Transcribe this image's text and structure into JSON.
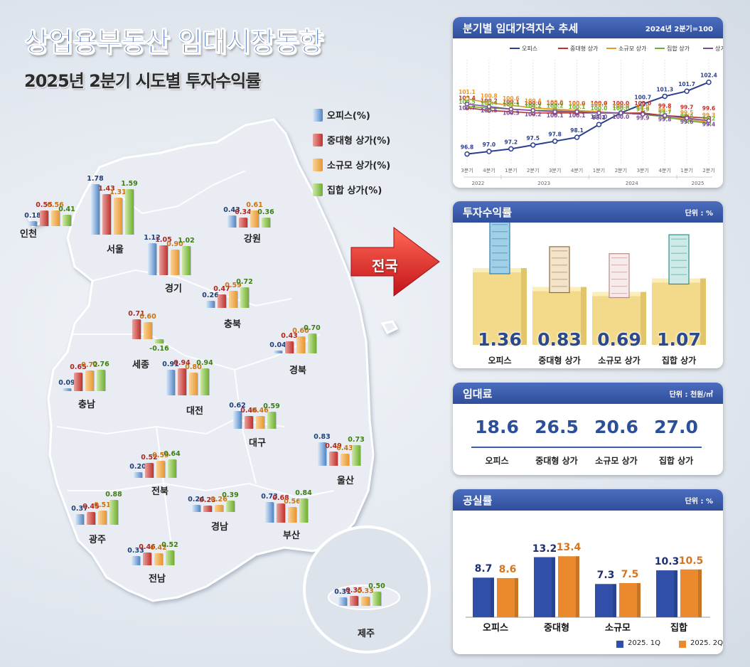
{
  "title": "상업용부동산 임대시장동향",
  "subtitle": "2025년 2분기 시도별 투자수익률",
  "legend": [
    {
      "label": "오피스(%)",
      "color": "#4f86c9"
    },
    {
      "label": "중대형 상가(%)",
      "color": "#c0302b"
    },
    {
      "label": "소규모 상가(%)",
      "color": "#e8962c"
    },
    {
      "label": "집합 상가(%)",
      "color": "#6fae2e"
    }
  ],
  "national_label": "전국",
  "chart_data": [
    {
      "type": "bar",
      "title": "2025년 2분기 시도별 투자수익률",
      "series": [
        {
          "name": "오피스(%)"
        },
        {
          "name": "중대형 상가(%)"
        },
        {
          "name": "소규모 상가(%)"
        },
        {
          "name": "집합 상가(%)"
        }
      ],
      "regions": [
        {
          "name": "인천",
          "values": [
            0.18,
            0.55,
            0.56,
            0.41
          ]
        },
        {
          "name": "서울",
          "values": [
            1.78,
            1.43,
            1.31,
            1.59
          ]
        },
        {
          "name": "강원",
          "values": [
            0.43,
            0.34,
            0.61,
            0.36
          ]
        },
        {
          "name": "경기",
          "values": [
            1.12,
            1.05,
            0.9,
            1.02
          ]
        },
        {
          "name": "충북",
          "values": [
            0.26,
            0.47,
            0.59,
            0.72
          ]
        },
        {
          "name": "세종",
          "values": [
            null,
            0.71,
            0.6,
            -0.16
          ]
        },
        {
          "name": "경북",
          "values": [
            0.04,
            0.43,
            0.6,
            0.7
          ]
        },
        {
          "name": "충남",
          "values": [
            0.09,
            0.65,
            0.72,
            0.76
          ]
        },
        {
          "name": "대전",
          "values": [
            0.91,
            0.94,
            0.8,
            0.94
          ]
        },
        {
          "name": "대구",
          "values": [
            0.62,
            0.46,
            0.46,
            0.59
          ]
        },
        {
          "name": "울산",
          "values": [
            0.83,
            0.49,
            0.43,
            0.73
          ]
        },
        {
          "name": "전북",
          "values": [
            0.2,
            0.52,
            0.59,
            0.64
          ]
        },
        {
          "name": "광주",
          "values": [
            0.37,
            0.45,
            0.51,
            0.88
          ]
        },
        {
          "name": "경남",
          "values": [
            0.24,
            0.23,
            0.26,
            0.39
          ]
        },
        {
          "name": "부산",
          "values": [
            0.73,
            0.68,
            0.56,
            0.84
          ]
        },
        {
          "name": "전남",
          "values": [
            0.33,
            0.46,
            0.42,
            0.52
          ]
        },
        {
          "name": "제주",
          "values": [
            0.31,
            0.35,
            0.33,
            0.5
          ]
        }
      ]
    },
    {
      "type": "line",
      "title": "분기별 임대가격지수 추세",
      "note": "2024년 2분기=100",
      "x": [
        "3분기",
        "4분기",
        "1분기",
        "2분기",
        "3분기",
        "4분기",
        "1분기",
        "2분기",
        "3분기",
        "4분기",
        "1분기",
        "2분기"
      ],
      "year_labels": [
        "2022",
        "2023",
        "2024",
        "2025"
      ],
      "series": [
        {
          "name": "오피스",
          "color": "#2b3f8f",
          "values": [
            96.8,
            97.0,
            97.2,
            97.5,
            97.8,
            98.1,
            99.1,
            100.0,
            100.7,
            101.3,
            101.7,
            102.4
          ]
        },
        {
          "name": "중대형 상가",
          "color": "#c0302b",
          "values": [
            100.4,
            100.2,
            100.1,
            100.0,
            100.0,
            100.0,
            100.0,
            100.0,
            100.0,
            99.8,
            99.7,
            99.6
          ]
        },
        {
          "name": "소규모 상가",
          "color": "#e8962c",
          "values": [
            101.1,
            100.8,
            100.6,
            100.4,
            100.3,
            100.2,
            100.1,
            100.0,
            99.9,
            99.7,
            99.5,
            99.3
          ]
        },
        {
          "name": "집합 상가",
          "color": "#6fae2e",
          "values": [
            100.5,
            100.4,
            100.3,
            100.2,
            100.2,
            100.1,
            100.0,
            100.0,
            99.9,
            99.7,
            99.4,
            99.2
          ]
        },
        {
          "name": "상가통합",
          "color": "#7a4a9a",
          "values": [
            100.7,
            100.5,
            100.3,
            100.2,
            100.1,
            100.1,
            100.0,
            100.0,
            99.9,
            99.8,
            99.6,
            99.4
          ]
        }
      ]
    },
    {
      "type": "bar",
      "title": "투자수익률",
      "unit": "단위 : %",
      "categories": [
        "오피스",
        "중대형 상가",
        "소규모 상가",
        "집합 상가"
      ],
      "values": [
        1.36,
        0.83,
        0.69,
        1.07
      ]
    },
    {
      "type": "table",
      "title": "임대료",
      "unit": "단위 : 천원/㎡",
      "categories": [
        "오피스",
        "중대형 상가",
        "소규모 상가",
        "집합 상가"
      ],
      "values": [
        "18.6",
        "26.5",
        "20.6",
        "27.0"
      ]
    },
    {
      "type": "bar",
      "title": "공실률",
      "unit": "단위 : %",
      "categories": [
        "오피스",
        "중대형",
        "소규모",
        "집합"
      ],
      "series": [
        {
          "name": "2025. 1Q",
          "color": "#2f4fa8",
          "values": [
            8.7,
            13.2,
            7.3,
            10.3
          ]
        },
        {
          "name": "2025. 2Q",
          "color": "#ea8a2c",
          "values": [
            8.6,
            13.4,
            7.5,
            10.5
          ]
        }
      ],
      "ylim": [
        0,
        15
      ]
    }
  ]
}
